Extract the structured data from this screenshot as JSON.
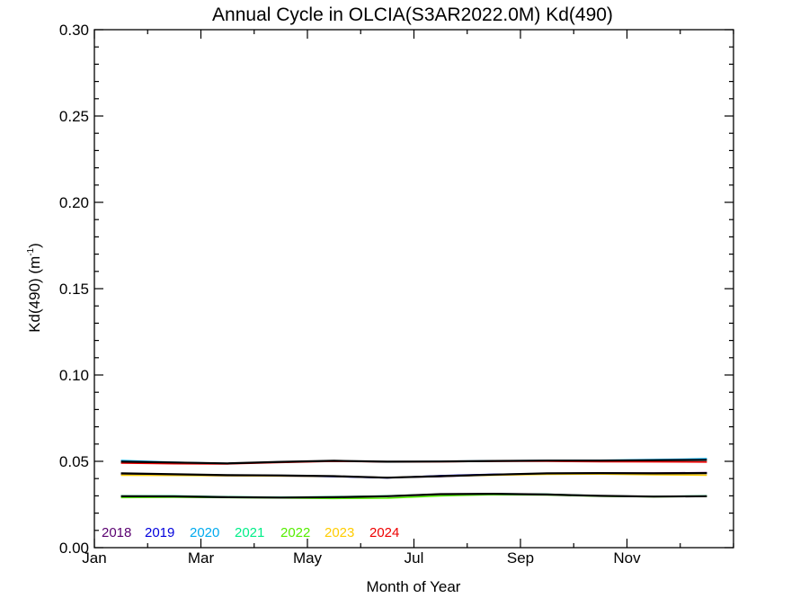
{
  "chart_data": {
    "type": "line",
    "title": "Annual Cycle in OLCIA(S3AR2022.0M) Kd(490)",
    "xlabel": "Month of Year",
    "ylabel": "Kd(490) (m",
    "ylabel_sup": "-1",
    "ylabel_close": ")",
    "xlim": [
      1,
      13
    ],
    "ylim": [
      0,
      0.3
    ],
    "x_tick_positions": [
      1,
      3,
      5,
      7,
      9,
      11
    ],
    "x_tick_labels": [
      "Jan",
      "Mar",
      "May",
      "Jul",
      "Sep",
      "Nov"
    ],
    "y_tick_values": [
      0,
      0.05,
      0.1,
      0.15,
      0.2,
      0.25,
      0.3
    ],
    "y_tick_labels": [
      "0.00",
      "0.05",
      "0.10",
      "0.15",
      "0.20",
      "0.25",
      "0.30"
    ],
    "x": [
      1.5,
      2.5,
      3.5,
      4.5,
      5.5,
      6.5,
      7.5,
      8.5,
      9.5,
      10.5,
      11.5,
      12.5
    ],
    "series": [
      {
        "name": "2018",
        "color": "#5a0070",
        "values": [
          0.043,
          0.0422,
          0.0418,
          0.0416,
          0.0414,
          0.0406,
          0.0412,
          0.0422,
          0.043,
          0.0432,
          0.0432,
          0.0435
        ]
      },
      {
        "name": "2019",
        "color": "#0000dd",
        "values": [
          0.0425,
          0.042,
          0.0417,
          0.0415,
          0.0412,
          0.0404,
          0.0417,
          0.0425,
          0.0428,
          0.0432,
          0.043,
          0.0432
        ]
      },
      {
        "name": "2020",
        "color": "#00aaee",
        "values": [
          0.0505,
          0.0495,
          0.0488,
          0.0497,
          0.0502,
          0.0497,
          0.05,
          0.0503,
          0.0505,
          0.0506,
          0.051,
          0.0515
        ]
      },
      {
        "name": "2021",
        "color": "#00ee88",
        "values": [
          0.03,
          0.03,
          0.0295,
          0.0292,
          0.0295,
          0.03,
          0.031,
          0.0312,
          0.031,
          0.03,
          0.0297,
          0.03
        ]
      },
      {
        "name": "2022",
        "color": "#55ee00",
        "values": [
          0.029,
          0.0292,
          0.029,
          0.0288,
          0.0285,
          0.0287,
          0.03,
          0.0307,
          0.0305,
          0.0298,
          0.0295,
          0.0297
        ]
      },
      {
        "name": "2023",
        "color": "#ffcc00",
        "values": [
          0.042,
          0.0418,
          0.0416,
          0.0415,
          0.0413,
          0.0406,
          0.0414,
          0.042,
          0.0425,
          0.0426,
          0.0422,
          0.042
        ]
      },
      {
        "name": "2024",
        "color": "#ee0000",
        "values": [
          0.049,
          0.0486,
          0.0485,
          0.0493,
          0.05,
          0.0497,
          0.0498,
          0.05,
          0.05,
          0.0498,
          0.0497,
          0.0496
        ]
      },
      {
        "name": "",
        "color": "#000000",
        "values": [
          0.0298,
          0.0297,
          0.0292,
          0.029,
          0.0292,
          0.0298,
          0.031,
          0.0312,
          0.0308,
          0.03,
          0.0296,
          0.0298
        ]
      },
      {
        "name": "",
        "color": "#000000",
        "values": [
          0.043,
          0.0425,
          0.042,
          0.0418,
          0.0414,
          0.0405,
          0.0414,
          0.0423,
          0.043,
          0.0432,
          0.043,
          0.0432
        ]
      },
      {
        "name": "",
        "color": "#000000",
        "values": [
          0.0498,
          0.0493,
          0.0488,
          0.0497,
          0.0503,
          0.0498,
          0.0499,
          0.0502,
          0.0504,
          0.0504,
          0.0506,
          0.0508
        ]
      }
    ],
    "legend_placement": "bottom-left",
    "grid": false
  }
}
